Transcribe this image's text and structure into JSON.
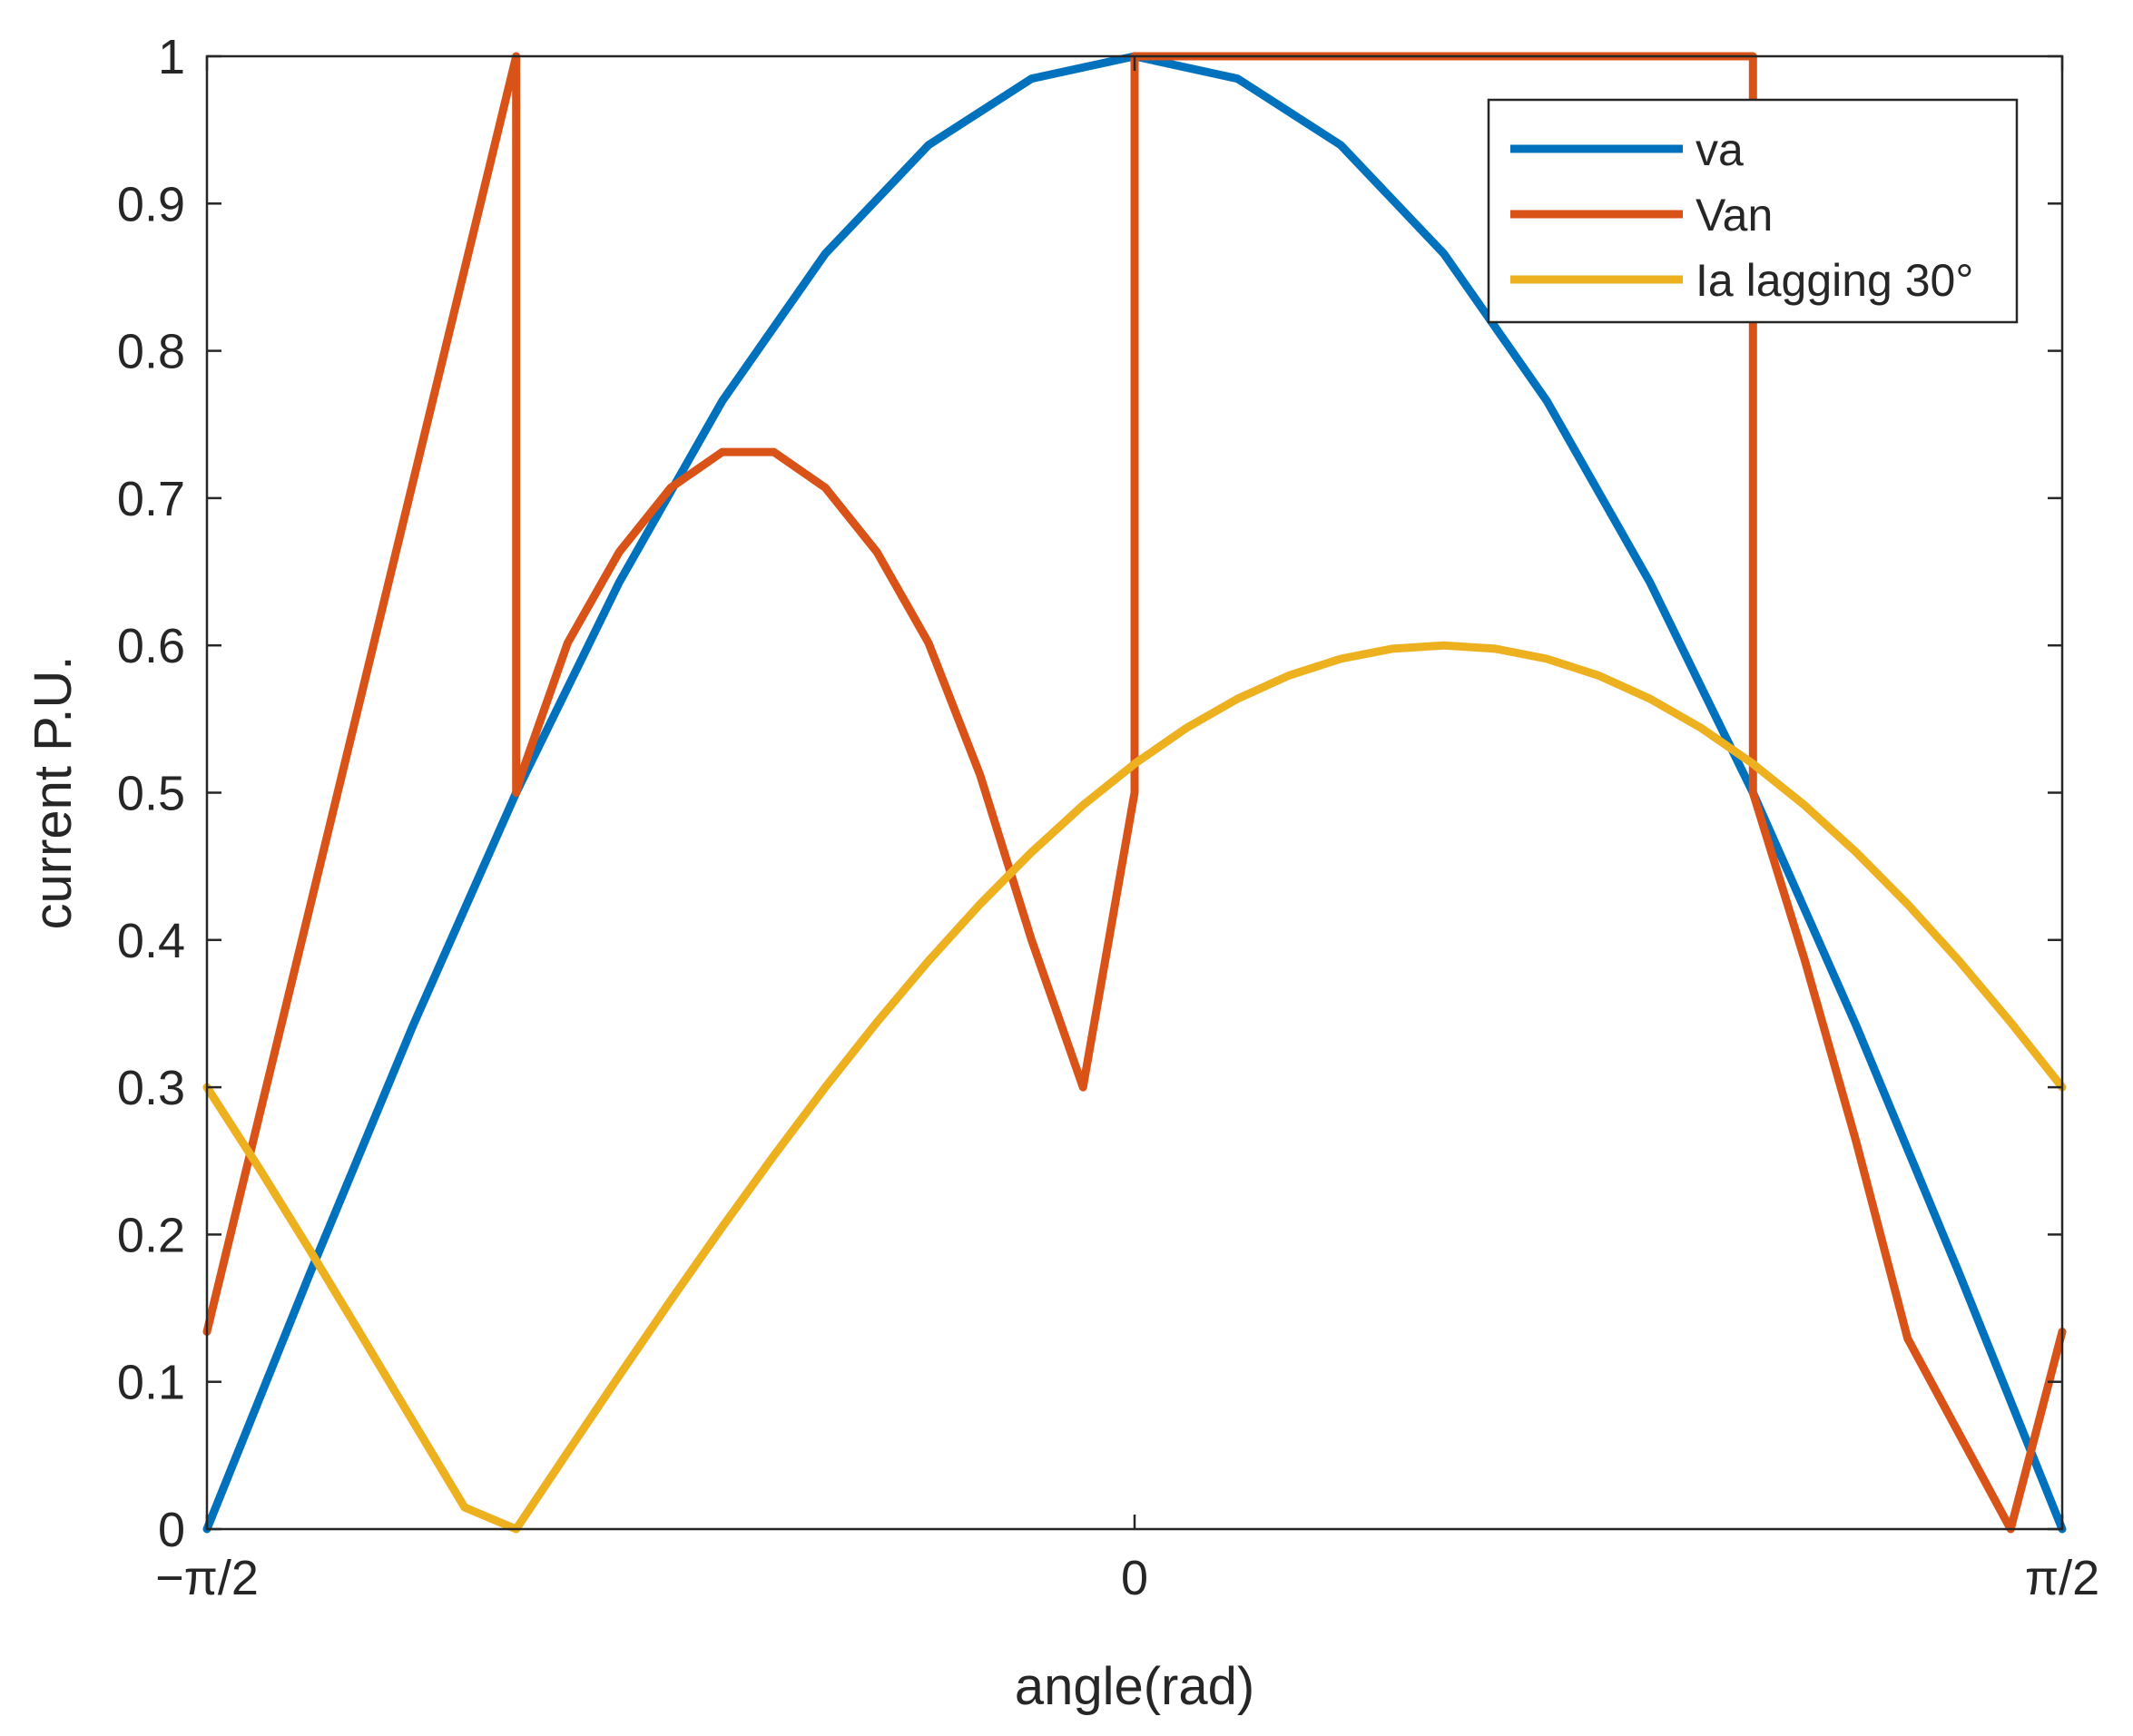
{
  "chart_data": {
    "type": "line",
    "title": "",
    "xlabel": "angle(rad)",
    "ylabel": "current P.U.",
    "xlim": [
      -1.5708,
      1.5708
    ],
    "ylim": [
      0,
      1
    ],
    "grid": false,
    "legend_position": "top-right",
    "x_ticks": [
      {
        "value": -1.5708,
        "label": "−π/2"
      },
      {
        "value": 0,
        "label": "0"
      },
      {
        "value": 1.5708,
        "label": "π/2"
      }
    ],
    "y_ticks": [
      {
        "value": 0,
        "label": "0"
      },
      {
        "value": 0.1,
        "label": "0.1"
      },
      {
        "value": 0.2,
        "label": "0.2"
      },
      {
        "value": 0.3,
        "label": "0.3"
      },
      {
        "value": 0.4,
        "label": "0.4"
      },
      {
        "value": 0.5,
        "label": "0.5"
      },
      {
        "value": 0.6,
        "label": "0.6"
      },
      {
        "value": 0.7,
        "label": "0.7"
      },
      {
        "value": 0.8,
        "label": "0.8"
      },
      {
        "value": 0.9,
        "label": "0.9"
      },
      {
        "value": 1,
        "label": "1"
      }
    ],
    "series": [
      {
        "name": "va",
        "color": "#0072BD",
        "x": [
          -1.5708,
          -1.3963,
          -1.2217,
          -1.0472,
          -0.8727,
          -0.6981,
          -0.5236,
          -0.3491,
          -0.1745,
          0,
          0.1745,
          0.3491,
          0.5236,
          0.6981,
          0.8727,
          1.0472,
          1.2217,
          1.3963,
          1.5708
        ],
        "y": [
          0,
          0.1736,
          0.342,
          0.5,
          0.6428,
          0.766,
          0.866,
          0.9397,
          0.9848,
          1.0,
          0.9848,
          0.9397,
          0.866,
          0.766,
          0.6428,
          0.5,
          0.342,
          0.1736,
          0
        ]
      },
      {
        "name": "Van",
        "color": "#D95319",
        "x": [
          -1.5708,
          -1.0472,
          -1.0472,
          -1.0385,
          -0.9599,
          -0.8727,
          -0.7854,
          -0.6981,
          -0.6109,
          -0.5236,
          -0.4363,
          -0.3491,
          -0.2618,
          -0.1745,
          -0.0873,
          0,
          0,
          1.0472,
          1.0472,
          1.1345,
          1.2217,
          1.309,
          1.4835,
          1.5708
        ],
        "y": [
          0.134,
          1.0,
          0.5,
          0.5122,
          0.6018,
          0.6634,
          0.7071,
          0.7313,
          0.7313,
          0.7071,
          0.6634,
          0.6018,
          0.5122,
          0.4,
          0.3,
          0.5,
          1.0,
          1.0,
          0.5,
          0.3868,
          0.2633,
          0.1294,
          0,
          0.134
        ]
      },
      {
        "name": "Ia lagging 30°",
        "color": "#EDB120",
        "x": [
          -1.5708,
          -1.4835,
          -1.3963,
          -1.309,
          -1.2217,
          -1.1345,
          -1.0472,
          -0.9599,
          -0.8727,
          -0.7854,
          -0.6981,
          -0.6109,
          -0.5236,
          -0.4363,
          -0.3491,
          -0.2618,
          -0.1745,
          -0.0873,
          0,
          0.0873,
          0.1745,
          0.2618,
          0.3491,
          0.4363,
          0.5236,
          0.6109,
          0.6981,
          0.7854,
          0.8727,
          0.9599,
          1.0472,
          1.1345,
          1.2217,
          1.309,
          1.3963,
          1.4835,
          1.5708
        ],
        "y": [
          0.3,
          0.2457,
          0.1893,
          0.1314,
          0.073,
          0.0147,
          0,
          0.0523,
          0.1042,
          0.1553,
          0.2052,
          0.2535,
          0.3,
          0.3441,
          0.3857,
          0.4243,
          0.4596,
          0.4915,
          0.5196,
          0.5438,
          0.5638,
          0.5796,
          0.5909,
          0.5977,
          0.6,
          0.5977,
          0.5909,
          0.5796,
          0.5638,
          0.5438,
          0.5196,
          0.4915,
          0.4596,
          0.4243,
          0.3857,
          0.3441,
          0.3
        ]
      }
    ]
  }
}
